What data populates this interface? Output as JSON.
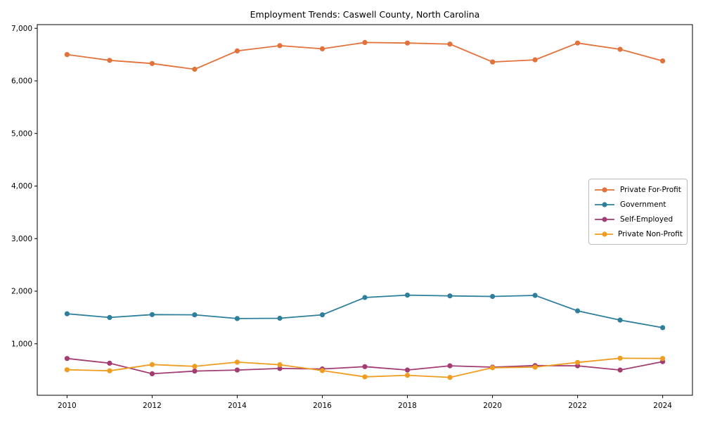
{
  "figure": {
    "background": "#ffffff",
    "frame_color": "#000000"
  },
  "chart_data": {
    "type": "line",
    "title": "Employment Trends: Caswell County, North Carolina",
    "xlabel": "",
    "ylabel": "",
    "grid": false,
    "legend_position": "center right",
    "x": [
      2010,
      2011,
      2012,
      2013,
      2014,
      2015,
      2016,
      2017,
      2018,
      2019,
      2020,
      2021,
      2022,
      2023,
      2024
    ],
    "xlim": [
      2009.3,
      2024.7
    ],
    "ylim": [
      20,
      7070
    ],
    "xticks": [
      2010,
      2012,
      2014,
      2016,
      2018,
      2020,
      2022,
      2024
    ],
    "xtick_labels": [
      "2010",
      "2012",
      "2014",
      "2016",
      "2018",
      "2020",
      "2022",
      "2024"
    ],
    "yticks": [
      1000,
      2000,
      3000,
      4000,
      5000,
      6000,
      7000
    ],
    "ytick_labels": [
      "1,000",
      "2,000",
      "3,000",
      "4,000",
      "5,000",
      "6,000",
      "7,000"
    ],
    "series": [
      {
        "name": "Private For-Profit",
        "color": "#e2713a",
        "marker": "circle",
        "values": [
          6500,
          6390,
          6330,
          6220,
          6570,
          6670,
          6610,
          6730,
          6720,
          6700,
          6360,
          6400,
          6720,
          6600,
          6380
        ]
      },
      {
        "name": "Government",
        "color": "#2e7f9b",
        "marker": "circle",
        "values": [
          1570,
          1500,
          1555,
          1550,
          1480,
          1485,
          1550,
          1880,
          1925,
          1910,
          1900,
          1920,
          1625,
          1450,
          1305
        ]
      },
      {
        "name": "Self-Employed",
        "color": "#a23c71",
        "marker": "circle",
        "values": [
          720,
          630,
          430,
          480,
          500,
          530,
          520,
          565,
          500,
          580,
          555,
          585,
          580,
          500,
          660
        ]
      },
      {
        "name": "Private Non-Profit",
        "color": "#f09c20",
        "marker": "circle",
        "values": [
          505,
          485,
          605,
          570,
          650,
          600,
          490,
          370,
          400,
          360,
          545,
          555,
          645,
          725,
          720
        ]
      }
    ]
  }
}
